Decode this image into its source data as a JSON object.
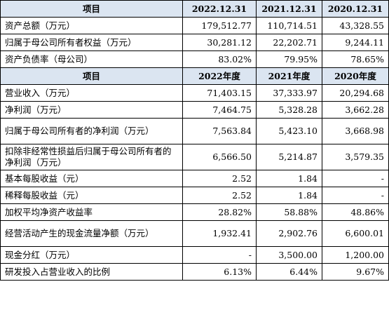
{
  "header1": {
    "label": "项目",
    "col1": "2022.12.31",
    "col2": "2021.12.31",
    "col3": "2020.12.31"
  },
  "balance_rows": [
    {
      "label": "资产总额（万元）",
      "v1": "179,512.77",
      "v2": "110,714.51",
      "v3": "43,328.55"
    },
    {
      "label": "归属于母公司所有者权益（万元）",
      "v1": "30,281.12",
      "v2": "22,202.71",
      "v3": "9,244.11"
    },
    {
      "label": "资产负债率（母公司）",
      "v1": "83.02%",
      "v2": "79.95%",
      "v3": "78.65%"
    }
  ],
  "header2": {
    "label": "项目",
    "col1": "2022年度",
    "col2": "2021年度",
    "col3": "2020年度"
  },
  "income_rows": [
    {
      "label": "营业收入（万元）",
      "v1": "71,403.15",
      "v2": "37,333.97",
      "v3": "20,294.68"
    },
    {
      "label": "净利润（万元）",
      "v1": "7,464.75",
      "v2": "5,328.28",
      "v3": "3,662.28"
    },
    {
      "label": "归属于母公司所有者的净利润（万元）",
      "v1": "7,563.84",
      "v2": "5,423.10",
      "v3": "3,668.98"
    },
    {
      "label": "扣除非经常性损益后归属于母公司所有者的净利润（万元）",
      "v1": "6,566.50",
      "v2": "5,214.87",
      "v3": "3,579.35"
    },
    {
      "label": "基本每股收益（元）",
      "v1": "2.52",
      "v2": "1.84",
      "v3": "-"
    },
    {
      "label": "稀释每股收益（元）",
      "v1": "2.52",
      "v2": "1.84",
      "v3": "-"
    },
    {
      "label": "加权平均净资产收益率",
      "v1": "28.82%",
      "v2": "58.88%",
      "v3": "48.86%"
    },
    {
      "label": "经营活动产生的现金流量净额（万元）",
      "v1": "1,932.41",
      "v2": "2,902.76",
      "v3": "6,600.01"
    },
    {
      "label": "现金分红（万元）",
      "v1": "-",
      "v2": "3,500.00",
      "v3": "1,200.00"
    },
    {
      "label": "研发投入占营业收入的比例",
      "v1": "6.13%",
      "v2": "6.44%",
      "v3": "9.67%"
    }
  ]
}
